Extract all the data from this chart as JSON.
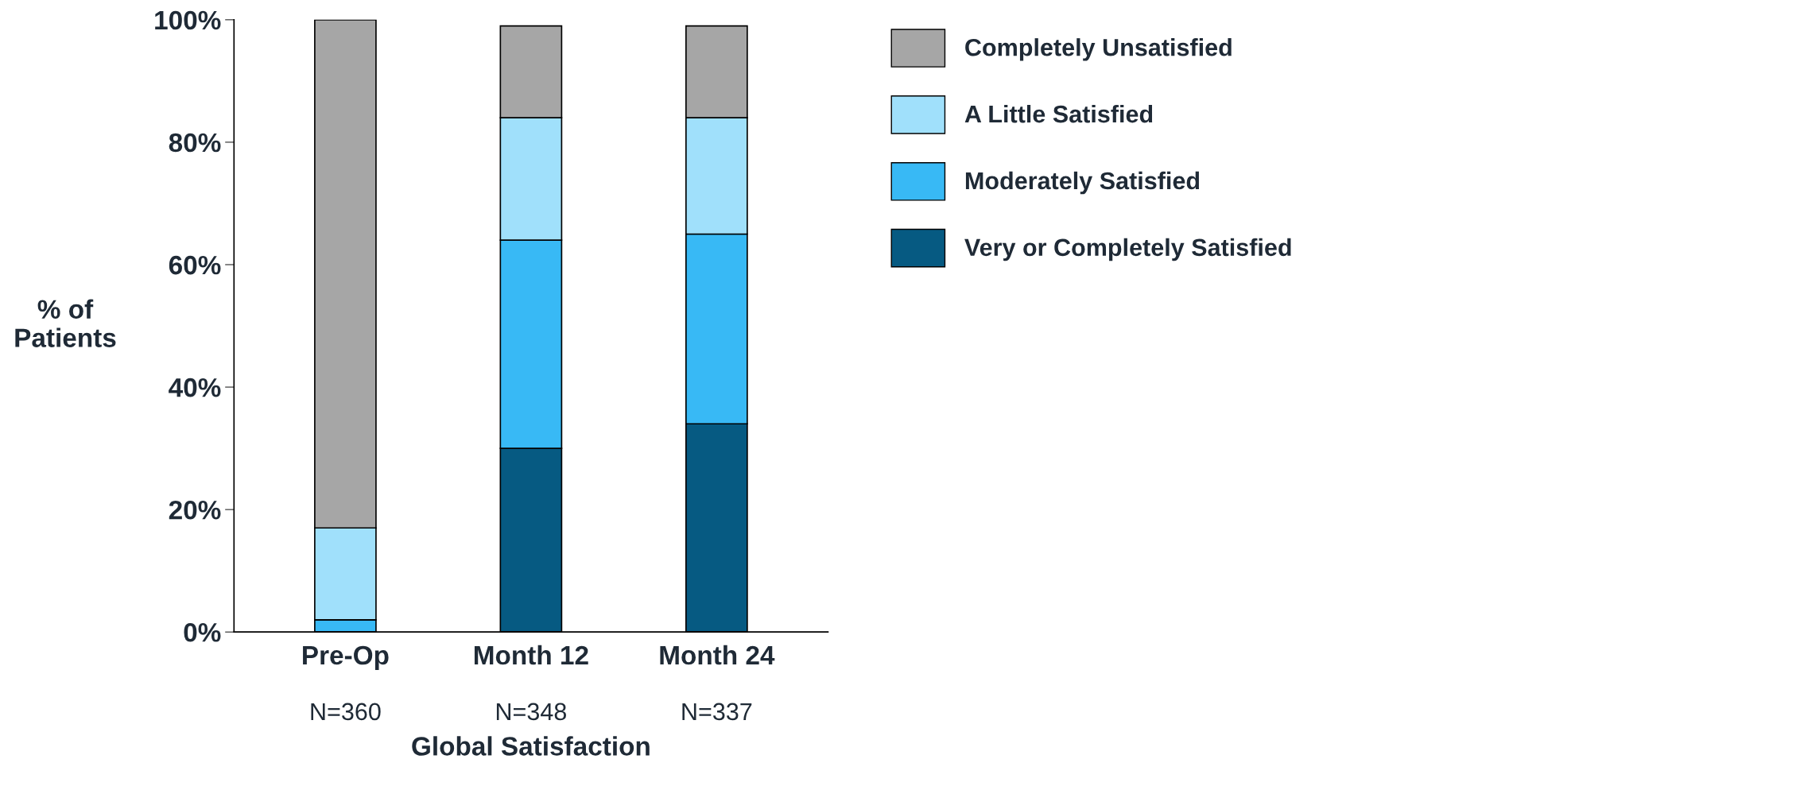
{
  "chart_data": {
    "type": "bar",
    "stacked": true,
    "categories": [
      "Pre-Op\nN=360",
      "Month 12\nN=348",
      "Month 24\nN=337"
    ],
    "series": [
      {
        "name": "Very or Completely Satisfied",
        "color": "#065a82",
        "values": [
          0,
          30,
          34
        ]
      },
      {
        "name": "Moderately Satisfied",
        "color": "#38b9f5",
        "values": [
          2,
          34,
          31
        ]
      },
      {
        "name": "A Little Satisfied",
        "color": "#a0e0fb",
        "values": [
          15,
          20,
          19
        ]
      },
      {
        "name": "Completely Unsatisfied",
        "color": "#a6a6a6",
        "values": [
          83,
          15,
          15
        ]
      }
    ],
    "xlabel": "Global Satisfaction",
    "ylabel": "% of\nPatients",
    "ylim": [
      0,
      100
    ],
    "yticks": [
      {
        "value": 0,
        "label": "0%"
      },
      {
        "value": 20,
        "label": "20%"
      },
      {
        "value": 40,
        "label": "40%"
      },
      {
        "value": 60,
        "label": "60%"
      },
      {
        "value": 80,
        "label": "80%"
      },
      {
        "value": 100,
        "label": "100%"
      }
    ],
    "grid": false,
    "legend": "right"
  }
}
